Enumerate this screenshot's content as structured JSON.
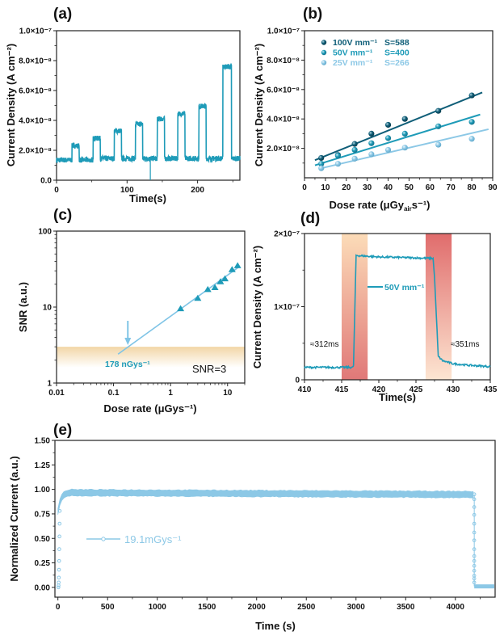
{
  "chart_data": [
    {
      "panel": "(a)",
      "type": "line",
      "title": "",
      "xlabel": "Time(s)",
      "ylabel": "Current Density (A cm⁻²)",
      "xlim": [
        0,
        260
      ],
      "ylim": [
        0,
        1e-07
      ],
      "xticks": [
        0,
        100,
        200
      ],
      "xtick_labels": [
        "0",
        "100",
        "200"
      ],
      "yticks": [
        0,
        2e-08,
        4e-08,
        6e-08,
        8e-08,
        1e-07
      ],
      "ytick_labels": [
        "0.0",
        "2.0×10⁻⁸",
        "4.0×10⁻⁸",
        "6.0×10⁻⁸",
        "8.0×10⁻⁸",
        "1.0×10⁻⁷"
      ],
      "color": "#1e9bb8",
      "baseline": 1.35e-08,
      "pulses": [
        {
          "start": 22,
          "end": 32,
          "level": 2.3e-08
        },
        {
          "start": 52,
          "end": 62,
          "level": 2.8e-08
        },
        {
          "start": 82,
          "end": 92,
          "level": 3.3e-08
        },
        {
          "start": 112,
          "end": 122,
          "level": 3.75e-08
        },
        {
          "start": 143,
          "end": 153,
          "level": 4.1e-08
        },
        {
          "start": 172,
          "end": 182,
          "level": 4.45e-08
        },
        {
          "start": 202,
          "end": 212,
          "level": 4.95e-08
        },
        {
          "start": 236,
          "end": 248,
          "level": 7.6e-08
        }
      ],
      "spike": {
        "x": 133,
        "y": 0
      }
    },
    {
      "panel": "(b)",
      "type": "scatter",
      "title": "",
      "xlabel": "Dose rate (μGy",
      "xlabel_sub": "air",
      "xlabel_tail": "s⁻¹)",
      "ylabel": "Current Density (A cm⁻²)",
      "xlim": [
        0,
        90
      ],
      "ylim": [
        0,
        1e-07
      ],
      "xticks": [
        0,
        10,
        20,
        30,
        40,
        50,
        60,
        70,
        80,
        90
      ],
      "xtick_labels": [
        "0",
        "10",
        "20",
        "30",
        "40",
        "50",
        "60",
        "70",
        "80",
        "90"
      ],
      "yticks": [
        2e-08,
        4e-08,
        6e-08,
        8e-08,
        1e-07
      ],
      "ytick_labels": [
        "2.0×10⁻⁸",
        "4.0×10⁻⁸",
        "6.0×10⁻⁸",
        "8.0×10⁻⁸",
        "1.0×10⁻⁷"
      ],
      "legend_position": "top-left",
      "x": [
        8,
        16,
        24,
        32,
        40,
        48,
        64,
        80
      ],
      "series": [
        {
          "name": "100V mm⁻¹",
          "sensitivity": "S=588",
          "color": "#0f5e78",
          "values": [
            1.35e-08,
            1.55e-08,
            2.3e-08,
            3e-08,
            3.6e-08,
            4e-08,
            4.55e-08,
            5.6e-08
          ],
          "fit": {
            "x": [
              5,
              85
            ],
            "y": [
              1.2e-08,
              5.8e-08
            ]
          }
        },
        {
          "name": "50V mm⁻¹",
          "sensitivity": "S=400",
          "color": "#1e9bb8",
          "values": [
            9.5e-09,
            1.5e-08,
            1.9e-08,
            2.35e-08,
            2.7e-08,
            3e-08,
            3.5e-08,
            3.8e-08
          ],
          "fit": {
            "x": [
              5,
              84
            ],
            "y": [
              8.5e-09,
              4.3e-08
            ]
          }
        },
        {
          "name": "25V mm⁻¹",
          "sensitivity": "S=266",
          "color": "#8cc8e6",
          "values": [
            6.5e-09,
            9.5e-09,
            1.3e-08,
            1.6e-08,
            1.9e-08,
            2.05e-08,
            2.25e-08,
            2.65e-08
          ],
          "fit": {
            "x": [
              8,
              88
            ],
            "y": [
              6.5e-09,
              3.3e-08
            ]
          }
        }
      ]
    },
    {
      "panel": "(c)",
      "type": "scatter",
      "title": "",
      "xlabel": "Dose rate (μGys⁻¹)",
      "ylabel": "SNR (a.u.)",
      "xscale": "log",
      "yscale": "log",
      "xlim": [
        0.01,
        20
      ],
      "ylim": [
        1,
        100
      ],
      "xticks": [
        0.01,
        0.1,
        1,
        10
      ],
      "xtick_labels": [
        "0.01",
        "0.1",
        "1",
        "10"
      ],
      "yticks": [
        1,
        10,
        100
      ],
      "ytick_labels": [
        "1",
        "10",
        "100"
      ],
      "x": [
        1.5,
        3,
        4.5,
        6,
        7.5,
        9,
        12,
        15
      ],
      "values": [
        9.5,
        13,
        17,
        18,
        21.5,
        23.5,
        31,
        35
      ],
      "marker_color": "#1e9bb8",
      "fit_color": "#7fc4e6",
      "fit": {
        "x": [
          0.12,
          16
        ],
        "y": [
          2.4,
          34
        ]
      },
      "threshold": {
        "label": "SNR=3",
        "value": 3
      },
      "annotation": {
        "text": "178 nGys⁻¹",
        "x": 0.178,
        "color": "#1e9bb8"
      }
    },
    {
      "panel": "(d)",
      "type": "line",
      "title": "",
      "xlabel": "Time(s)",
      "ylabel": "Current Density (A cm⁻²)",
      "xlim": [
        410,
        435
      ],
      "ylim": [
        0,
        2e-07
      ],
      "xticks": [
        410,
        415,
        420,
        425,
        430,
        435
      ],
      "xtick_labels": [
        "410",
        "415",
        "420",
        "425",
        "430",
        "435"
      ],
      "yticks": [
        0,
        1e-07,
        2e-07
      ],
      "ytick_labels": [
        "0",
        "1×10⁻⁷",
        "2×10⁻⁷"
      ],
      "color": "#1e9bb8",
      "legend": "50V mm⁻¹",
      "rise_annotation": "≈312ms",
      "fall_annotation": "≈351ms",
      "bands": [
        {
          "x": [
            415,
            418.5
          ],
          "kind": "rise"
        },
        {
          "x": [
            426.3,
            429.8
          ],
          "kind": "fall"
        }
      ],
      "points": [
        [
          410,
          1.7e-08
        ],
        [
          416.5,
          1.7e-08
        ],
        [
          416.6,
          2e-08
        ],
        [
          416.95,
          1.7e-07
        ],
        [
          420,
          1.68e-07
        ],
        [
          424,
          1.67e-07
        ],
        [
          427.3,
          1.66e-07
        ],
        [
          427.5,
          1.4e-07
        ],
        [
          428,
          3.2e-08
        ],
        [
          428.6,
          2.6e-08
        ],
        [
          430,
          2.2e-08
        ],
        [
          432,
          2e-08
        ],
        [
          435,
          1.8e-08
        ]
      ]
    },
    {
      "panel": "(e)",
      "type": "line",
      "title": "",
      "xlabel": "Time (s)",
      "ylabel": "Normalized Current (a.u.)",
      "xlim": [
        -30,
        4400
      ],
      "ylim": [
        -0.1,
        1.5
      ],
      "xticks": [
        0,
        500,
        1000,
        1500,
        2000,
        2500,
        3000,
        3500,
        4000
      ],
      "xtick_labels": [
        "0",
        "500",
        "1000",
        "1500",
        "2000",
        "2500",
        "3000",
        "3500",
        "4000"
      ],
      "yticks": [
        0,
        0.25,
        0.5,
        0.75,
        1.0,
        1.25,
        1.5
      ],
      "ytick_labels": [
        "0.00",
        "0.25",
        "0.50",
        "0.75",
        "1.00",
        "1.25",
        "1.50"
      ],
      "color": "#8cc8e6",
      "legend": "19.1mGys⁻¹",
      "legend_position": "lower-left",
      "rise_points": [
        0,
        0.02,
        0.05,
        0.1,
        0.18,
        0.27,
        0.39,
        0.52,
        0.65,
        0.78
      ],
      "plateau": {
        "start": 20,
        "end": 4180,
        "level_start": 0.97,
        "level_end": 0.95
      },
      "fall_points": [
        0.95,
        0.9,
        0.82,
        0.74,
        0.65,
        0.56,
        0.48,
        0.39,
        0.32,
        0.27,
        0.22,
        0.17,
        0.12,
        0.09,
        0.05
      ],
      "fall_time": 4190,
      "off_level": 0.01
    }
  ]
}
